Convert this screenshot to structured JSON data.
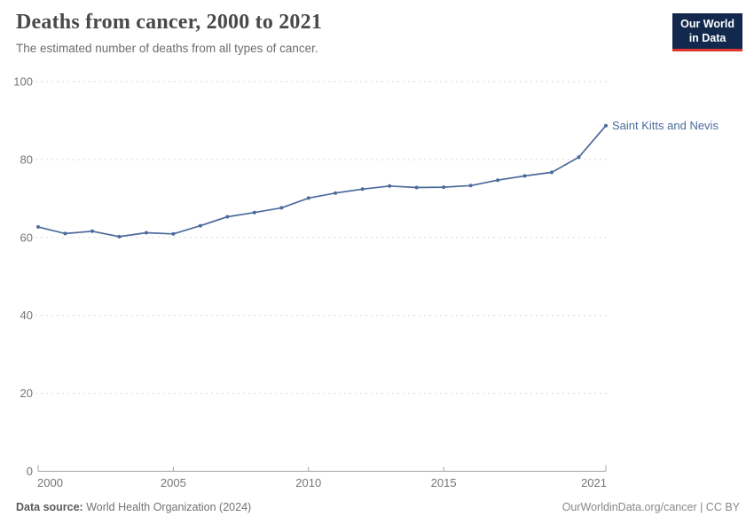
{
  "header": {
    "title": "Deaths from cancer, 2000 to 2021",
    "subtitle": "The estimated number of deaths from all types of cancer.",
    "logo": {
      "line1": "Our World",
      "line2": "in Data",
      "bg_color": "#12294d",
      "accent_color": "#e0352f"
    }
  },
  "chart_data": {
    "type": "line",
    "title": "Deaths from cancer, 2000 to 2021",
    "subtitle": "The estimated number of deaths from all types of cancer.",
    "x": [
      2000,
      2001,
      2002,
      2003,
      2004,
      2005,
      2006,
      2007,
      2008,
      2009,
      2010,
      2011,
      2012,
      2013,
      2014,
      2015,
      2016,
      2017,
      2018,
      2019,
      2020,
      2021
    ],
    "series": [
      {
        "name": "Saint Kitts and Nevis",
        "color": "#4c6a9c",
        "values": [
          62.7,
          61.0,
          61.6,
          60.2,
          61.2,
          60.9,
          63.0,
          65.3,
          66.4,
          67.6,
          70.1,
          71.4,
          72.4,
          73.2,
          72.8,
          72.9,
          73.3,
          74.7,
          75.8,
          76.7,
          80.6,
          88.7
        ]
      }
    ],
    "xlim": [
      2000,
      2021
    ],
    "ylim": [
      0,
      100
    ],
    "xticks": [
      2000,
      2005,
      2010,
      2015,
      2021
    ],
    "yticks": [
      0,
      20,
      40,
      60,
      80,
      100
    ],
    "grid": "horizontal-dashed",
    "grid_color": "#dadada",
    "axis_color": "#a3a3a3",
    "legend_position": "end-of-line-label"
  },
  "footer": {
    "source_label": "Data source:",
    "source_value": "World Health Organization (2024)",
    "attribution": "OurWorldinData.org/cancer | CC BY"
  }
}
